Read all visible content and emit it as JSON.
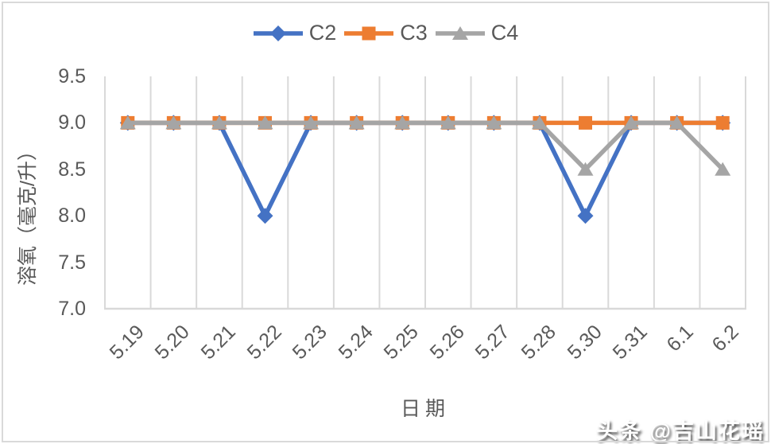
{
  "chart_data": {
    "type": "line",
    "title": "",
    "categories": [
      "5.19",
      "5.20",
      "5.21",
      "5.22",
      "5.23",
      "5.24",
      "5.25",
      "5.26",
      "5.27",
      "5.28",
      "5.30",
      "5.31",
      "6.1",
      "6.2"
    ],
    "series": [
      {
        "name": "C2",
        "marker": "diamond",
        "color": "#4472C4",
        "values": [
          9,
          9,
          9,
          8,
          9,
          9,
          9,
          9,
          9,
          9,
          8,
          9,
          9,
          9
        ]
      },
      {
        "name": "C3",
        "marker": "square",
        "color": "#ED7D31",
        "values": [
          9,
          9,
          9,
          9,
          9,
          9,
          9,
          9,
          9,
          9,
          9,
          9,
          9,
          9
        ]
      },
      {
        "name": "C4",
        "marker": "triangle",
        "color": "#A5A5A5",
        "values": [
          9,
          9,
          9,
          9,
          9,
          9,
          9,
          9,
          9,
          9,
          8.5,
          9,
          9,
          8.5
        ]
      }
    ],
    "xlabel": "日期",
    "ylabel": "溶氧（毫克/升）",
    "ylim": [
      7.0,
      9.5
    ],
    "ytick_step": 0.5,
    "yticks": [
      "9.5",
      "9.0",
      "8.5",
      "8.0",
      "7.5",
      "7.0"
    ],
    "grid": "vertical-only",
    "legend_position": "top-center"
  },
  "watermark": "头条 @吉山花瑶",
  "colors": {
    "background": "#FFFFFF",
    "frame": "#D9D9D9",
    "gridline": "#D9D9D9",
    "axis_line": "#D9D9D9",
    "text": "#595959",
    "watermark_text": "#FFFFFF",
    "watermark_shadow": "#4A4A4A"
  }
}
